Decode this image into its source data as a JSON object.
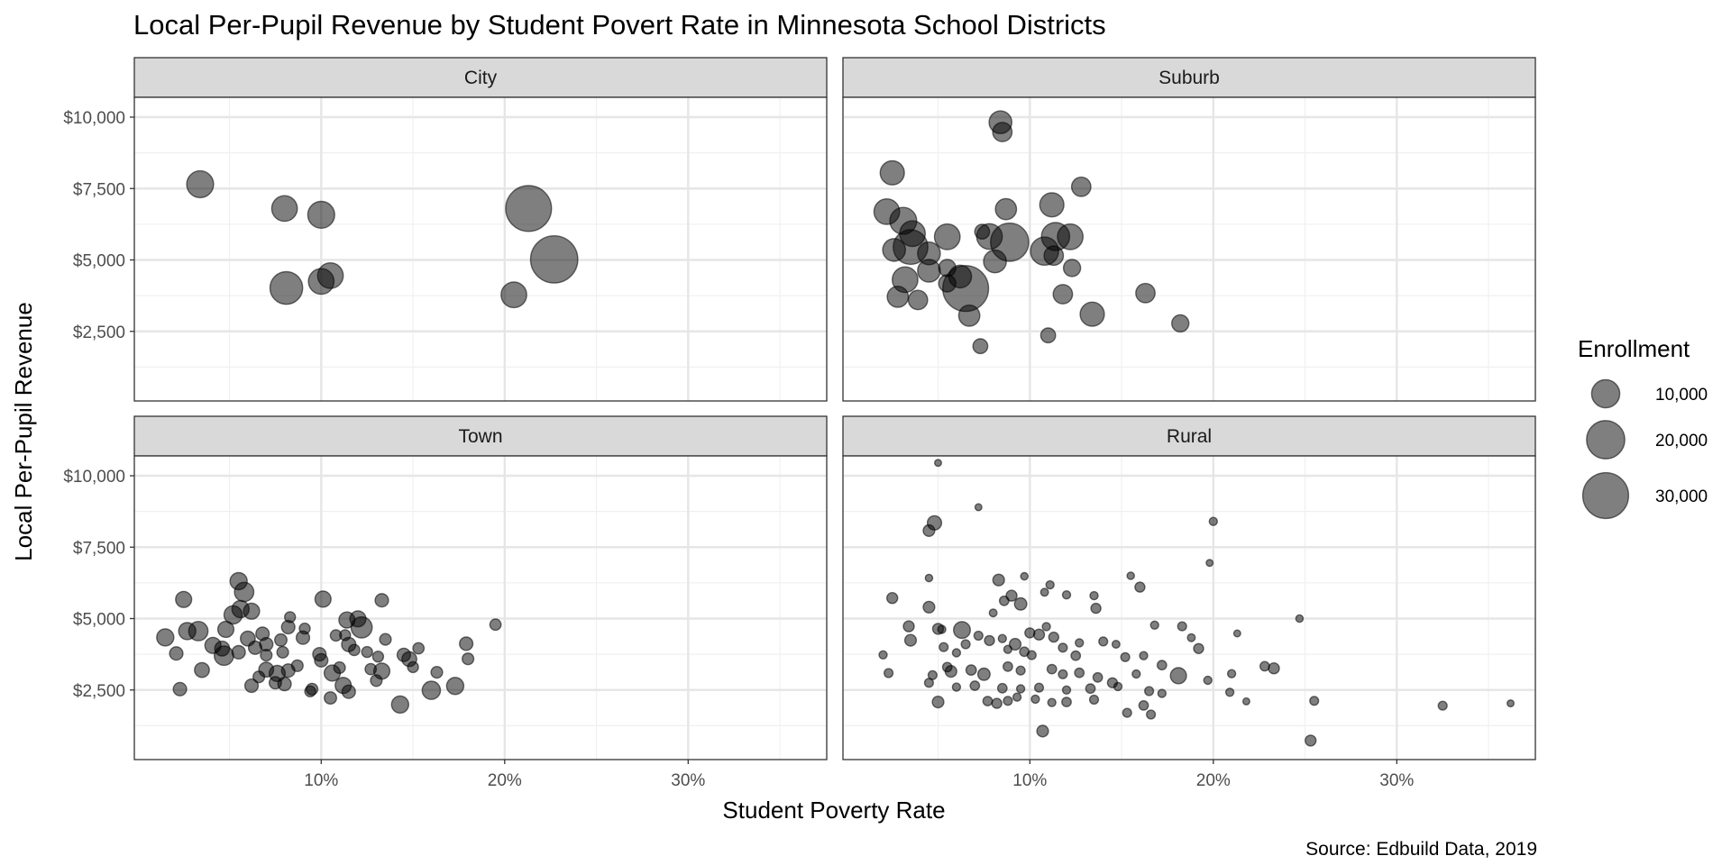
{
  "chart_data": {
    "type": "scatter",
    "title": "Local  Per-Pupil Revenue by Student Povert Rate in Minnesota School Districts",
    "xlabel": "Student Poverty Rate",
    "ylabel": "Local Per-Pupil Revenue",
    "caption": "Source: Edbuild Data, 2019",
    "xlim": [
      0,
      0.38
    ],
    "ylim": [
      0,
      11000
    ],
    "x_ticks": [
      {
        "value": 0.1,
        "label": "10%"
      },
      {
        "value": 0.2,
        "label": "20%"
      },
      {
        "value": 0.3,
        "label": "30%"
      }
    ],
    "y_ticks": [
      {
        "value": 2500,
        "label": "$2,500"
      },
      {
        "value": 5000,
        "label": "$5,000"
      },
      {
        "value": 7500,
        "label": "$7,500"
      },
      {
        "value": 10000,
        "label": "$10,000"
      }
    ],
    "grid": true,
    "legend": {
      "title": "Enrollment",
      "position": "right",
      "entries": [
        {
          "value": 10000,
          "label": "10,000"
        },
        {
          "value": 20000,
          "label": "20,000"
        },
        {
          "value": 30000,
          "label": "30,000"
        }
      ]
    },
    "panels": [
      {
        "name": "City",
        "points": [
          [
            0.034,
            7650,
            9000
          ],
          [
            0.08,
            6800,
            8000
          ],
          [
            0.1,
            6580,
            9000
          ],
          [
            0.081,
            4020,
            14000
          ],
          [
            0.1,
            4250,
            8000
          ],
          [
            0.105,
            4450,
            8000
          ],
          [
            0.205,
            3780,
            8000
          ],
          [
            0.213,
            6800,
            30000
          ],
          [
            0.227,
            5020,
            32000
          ]
        ]
      },
      {
        "name": "Suburb",
        "points": [
          [
            0.084,
            9820,
            6000
          ],
          [
            0.085,
            9480,
            4000
          ],
          [
            0.025,
            8050,
            7000
          ],
          [
            0.128,
            7560,
            4000
          ],
          [
            0.022,
            6690,
            8000
          ],
          [
            0.112,
            6930,
            7000
          ],
          [
            0.087,
            6780,
            5000
          ],
          [
            0.031,
            6370,
            9000
          ],
          [
            0.036,
            5920,
            8000
          ],
          [
            0.055,
            5810,
            8000
          ],
          [
            0.078,
            5820,
            8000
          ],
          [
            0.074,
            5990,
            2000
          ],
          [
            0.114,
            5820,
            10000
          ],
          [
            0.122,
            5810,
            8000
          ],
          [
            0.026,
            5350,
            6000
          ],
          [
            0.035,
            5450,
            16000
          ],
          [
            0.045,
            5230,
            6000
          ],
          [
            0.089,
            5620,
            20000
          ],
          [
            0.108,
            5310,
            10000
          ],
          [
            0.113,
            5150,
            4000
          ],
          [
            0.045,
            4620,
            6000
          ],
          [
            0.055,
            4720,
            3000
          ],
          [
            0.062,
            4420,
            6000
          ],
          [
            0.081,
            4950,
            6000
          ],
          [
            0.123,
            4720,
            3000
          ],
          [
            0.032,
            4310,
            8000
          ],
          [
            0.055,
            4180,
            3000
          ],
          [
            0.065,
            4000,
            30000
          ],
          [
            0.028,
            3710,
            5000
          ],
          [
            0.039,
            3600,
            4000
          ],
          [
            0.118,
            3800,
            4000
          ],
          [
            0.163,
            3840,
            4000
          ],
          [
            0.067,
            3050,
            5000
          ],
          [
            0.134,
            3100,
            7000
          ],
          [
            0.11,
            2360,
            2000
          ],
          [
            0.182,
            2780,
            3000
          ],
          [
            0.073,
            1980,
            2000
          ]
        ]
      },
      {
        "name": "Town",
        "points": [
          [
            0.055,
            6310,
            3000
          ],
          [
            0.058,
            5930,
            4000
          ],
          [
            0.025,
            5670,
            2500
          ],
          [
            0.101,
            5680,
            2500
          ],
          [
            0.133,
            5640,
            1500
          ],
          [
            0.056,
            5330,
            3000
          ],
          [
            0.062,
            5260,
            2500
          ],
          [
            0.052,
            5130,
            3500
          ],
          [
            0.083,
            5050,
            800
          ],
          [
            0.12,
            4990,
            2500
          ],
          [
            0.114,
            4950,
            2500
          ],
          [
            0.195,
            4790,
            900
          ],
          [
            0.015,
            4340,
            3000
          ],
          [
            0.027,
            4560,
            3000
          ],
          [
            0.033,
            4560,
            4000
          ],
          [
            0.048,
            4620,
            2500
          ],
          [
            0.068,
            4470,
            1500
          ],
          [
            0.082,
            4700,
            1500
          ],
          [
            0.091,
            4650,
            800
          ],
          [
            0.122,
            4690,
            5000
          ],
          [
            0.108,
            4410,
            900
          ],
          [
            0.113,
            4420,
            800
          ],
          [
            0.06,
            4300,
            2000
          ],
          [
            0.07,
            4100,
            1500
          ],
          [
            0.078,
            4250,
            1200
          ],
          [
            0.09,
            4330,
            1500
          ],
          [
            0.041,
            4060,
            2500
          ],
          [
            0.046,
            3950,
            2000
          ],
          [
            0.064,
            3980,
            1500
          ],
          [
            0.115,
            4090,
            1800
          ],
          [
            0.118,
            3900,
            900
          ],
          [
            0.135,
            4270,
            1000
          ],
          [
            0.153,
            3960,
            900
          ],
          [
            0.179,
            4120,
            1500
          ],
          [
            0.021,
            3780,
            1500
          ],
          [
            0.047,
            3700,
            4000
          ],
          [
            0.055,
            3820,
            1500
          ],
          [
            0.07,
            3720,
            1000
          ],
          [
            0.079,
            3820,
            1000
          ],
          [
            0.099,
            3750,
            1500
          ],
          [
            0.125,
            3830,
            800
          ],
          [
            0.131,
            3670,
            800
          ],
          [
            0.145,
            3730,
            1500
          ],
          [
            0.148,
            3580,
            2000
          ],
          [
            0.18,
            3590,
            1000
          ],
          [
            0.035,
            3200,
            2000
          ],
          [
            0.07,
            3210,
            2000
          ],
          [
            0.076,
            3080,
            2500
          ],
          [
            0.082,
            3180,
            1500
          ],
          [
            0.087,
            3350,
            1000
          ],
          [
            0.1,
            3540,
            1500
          ],
          [
            0.106,
            3090,
            2500
          ],
          [
            0.11,
            3280,
            1000
          ],
          [
            0.127,
            3230,
            900
          ],
          [
            0.133,
            3160,
            2500
          ],
          [
            0.15,
            3300,
            800
          ],
          [
            0.163,
            3120,
            1000
          ],
          [
            0.066,
            2960,
            1000
          ],
          [
            0.075,
            2750,
            1200
          ],
          [
            0.08,
            2710,
            1500
          ],
          [
            0.095,
            2530,
            1000
          ],
          [
            0.112,
            2660,
            2500
          ],
          [
            0.115,
            2440,
            1500
          ],
          [
            0.023,
            2530,
            1500
          ],
          [
            0.062,
            2650,
            1500
          ],
          [
            0.094,
            2450,
            800
          ],
          [
            0.13,
            2830,
            1000
          ],
          [
            0.105,
            2220,
            1200
          ],
          [
            0.143,
            1990,
            3000
          ],
          [
            0.16,
            2490,
            3500
          ],
          [
            0.173,
            2640,
            3000
          ]
        ]
      },
      {
        "name": "Rural",
        "points": [
          [
            0.05,
            10450,
            150
          ],
          [
            0.072,
            8900,
            150
          ],
          [
            0.045,
            8080,
            1000
          ],
          [
            0.048,
            8350,
            1800
          ],
          [
            0.2,
            8400,
            300
          ],
          [
            0.198,
            6950,
            150
          ],
          [
            0.083,
            6350,
            1000
          ],
          [
            0.045,
            6420,
            200
          ],
          [
            0.097,
            6480,
            200
          ],
          [
            0.111,
            6180,
            300
          ],
          [
            0.155,
            6500,
            200
          ],
          [
            0.16,
            6100,
            600
          ],
          [
            0.025,
            5720,
            800
          ],
          [
            0.034,
            4730,
            800
          ],
          [
            0.045,
            5400,
            1000
          ],
          [
            0.086,
            5620,
            500
          ],
          [
            0.09,
            5800,
            800
          ],
          [
            0.095,
            5510,
            1200
          ],
          [
            0.108,
            5920,
            250
          ],
          [
            0.12,
            5830,
            300
          ],
          [
            0.08,
            5200,
            250
          ],
          [
            0.135,
            5800,
            300
          ],
          [
            0.136,
            5360,
            600
          ],
          [
            0.247,
            5000,
            200
          ],
          [
            0.035,
            4240,
            1000
          ],
          [
            0.05,
            4640,
            800
          ],
          [
            0.052,
            4620,
            300
          ],
          [
            0.063,
            4600,
            2800
          ],
          [
            0.072,
            4400,
            400
          ],
          [
            0.085,
            4300,
            300
          ],
          [
            0.092,
            4100,
            1000
          ],
          [
            0.1,
            4500,
            600
          ],
          [
            0.105,
            4440,
            800
          ],
          [
            0.109,
            4720,
            300
          ],
          [
            0.113,
            4350,
            600
          ],
          [
            0.127,
            4150,
            300
          ],
          [
            0.14,
            4200,
            400
          ],
          [
            0.147,
            4100,
            250
          ],
          [
            0.168,
            4770,
            300
          ],
          [
            0.183,
            4730,
            400
          ],
          [
            0.188,
            4330,
            250
          ],
          [
            0.213,
            4480,
            150
          ],
          [
            0.053,
            4000,
            400
          ],
          [
            0.06,
            3800,
            300
          ],
          [
            0.065,
            4100,
            400
          ],
          [
            0.078,
            4230,
            600
          ],
          [
            0.088,
            3920,
            300
          ],
          [
            0.097,
            3840,
            500
          ],
          [
            0.101,
            3720,
            400
          ],
          [
            0.118,
            3980,
            400
          ],
          [
            0.125,
            3700,
            500
          ],
          [
            0.152,
            3650,
            400
          ],
          [
            0.162,
            3700,
            300
          ],
          [
            0.192,
            3950,
            600
          ],
          [
            0.02,
            3730,
            300
          ],
          [
            0.047,
            3020,
            400
          ],
          [
            0.055,
            3300,
            500
          ],
          [
            0.057,
            3150,
            1000
          ],
          [
            0.068,
            3200,
            700
          ],
          [
            0.075,
            3050,
            1200
          ],
          [
            0.088,
            3320,
            500
          ],
          [
            0.095,
            3180,
            400
          ],
          [
            0.112,
            3230,
            500
          ],
          [
            0.118,
            3050,
            400
          ],
          [
            0.127,
            3100,
            500
          ],
          [
            0.137,
            2940,
            500
          ],
          [
            0.145,
            2750,
            600
          ],
          [
            0.158,
            3060,
            300
          ],
          [
            0.172,
            3370,
            500
          ],
          [
            0.181,
            3000,
            2500
          ],
          [
            0.197,
            2840,
            300
          ],
          [
            0.21,
            3070,
            300
          ],
          [
            0.228,
            3330,
            500
          ],
          [
            0.233,
            3260,
            800
          ],
          [
            0.023,
            3090,
            400
          ],
          [
            0.045,
            2750,
            400
          ],
          [
            0.06,
            2600,
            300
          ],
          [
            0.07,
            2650,
            500
          ],
          [
            0.085,
            2560,
            500
          ],
          [
            0.095,
            2540,
            300
          ],
          [
            0.105,
            2580,
            400
          ],
          [
            0.12,
            2500,
            300
          ],
          [
            0.133,
            2550,
            500
          ],
          [
            0.148,
            2620,
            300
          ],
          [
            0.165,
            2460,
            400
          ],
          [
            0.172,
            2380,
            300
          ],
          [
            0.209,
            2420,
            300
          ],
          [
            0.05,
            2080,
            1000
          ],
          [
            0.077,
            2110,
            500
          ],
          [
            0.082,
            2030,
            600
          ],
          [
            0.088,
            2120,
            400
          ],
          [
            0.093,
            2250,
            300
          ],
          [
            0.103,
            2180,
            300
          ],
          [
            0.112,
            2060,
            300
          ],
          [
            0.12,
            2080,
            500
          ],
          [
            0.135,
            2160,
            400
          ],
          [
            0.153,
            1700,
            400
          ],
          [
            0.162,
            1960,
            500
          ],
          [
            0.166,
            1640,
            400
          ],
          [
            0.218,
            2100,
            150
          ],
          [
            0.255,
            2120,
            400
          ],
          [
            0.325,
            1950,
            400
          ],
          [
            0.362,
            2030,
            150
          ],
          [
            0.107,
            1060,
            1000
          ],
          [
            0.253,
            730,
            800
          ]
        ]
      }
    ]
  }
}
